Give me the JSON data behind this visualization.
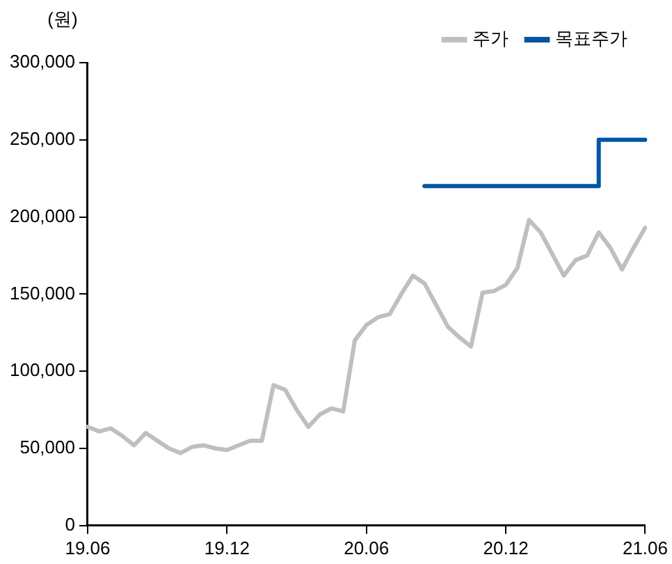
{
  "chart_data": {
    "type": "line",
    "ylabel": "(원)",
    "categories": [
      "19.06",
      null,
      null,
      null,
      null,
      null,
      null,
      null,
      null,
      null,
      null,
      null,
      "19.12",
      null,
      null,
      null,
      null,
      null,
      null,
      null,
      null,
      null,
      null,
      null,
      "20.06",
      null,
      null,
      null,
      null,
      null,
      null,
      null,
      null,
      null,
      null,
      null,
      "20.12",
      null,
      null,
      null,
      null,
      null,
      null,
      null,
      null,
      null,
      null,
      null,
      "21.06"
    ],
    "series": [
      {
        "name": "주가",
        "color": "#bfbfbf",
        "values": [
          64000,
          61000,
          63000,
          58000,
          52000,
          60000,
          55000,
          50000,
          47000,
          51000,
          52000,
          50000,
          49000,
          52000,
          55000,
          55000,
          91000,
          88000,
          75000,
          64000,
          72000,
          76000,
          74000,
          120000,
          130000,
          135000,
          137000,
          150000,
          162000,
          157000,
          143000,
          129000,
          122000,
          116000,
          151000,
          152000,
          156000,
          167000,
          198000,
          190000,
          176000,
          162000,
          172000,
          175000,
          190000,
          180000,
          166000,
          180000,
          193000
        ]
      },
      {
        "name": "목표주가",
        "type": "step",
        "color": "#0057a8",
        "values": [
          null,
          null,
          null,
          null,
          null,
          null,
          null,
          null,
          null,
          null,
          null,
          null,
          null,
          null,
          null,
          null,
          null,
          null,
          null,
          null,
          null,
          null,
          null,
          null,
          null,
          null,
          null,
          null,
          null,
          220000,
          220000,
          220000,
          220000,
          220000,
          220000,
          220000,
          220000,
          220000,
          220000,
          220000,
          220000,
          220000,
          220000,
          220000,
          250000,
          250000,
          250000,
          250000,
          250000
        ]
      }
    ],
    "ylim": [
      0,
      300000
    ],
    "yticks": [
      {
        "value": 0,
        "label": "0"
      },
      {
        "value": 50000,
        "label": "50,000"
      },
      {
        "value": 100000,
        "label": "100,000"
      },
      {
        "value": 150000,
        "label": "150,000"
      },
      {
        "value": 200000,
        "label": "200,000"
      },
      {
        "value": 250000,
        "label": "250,000"
      },
      {
        "value": 300000,
        "label": "300,000"
      }
    ],
    "grid": false,
    "legend": "top right",
    "marker": "none",
    "line_style": "solid"
  }
}
